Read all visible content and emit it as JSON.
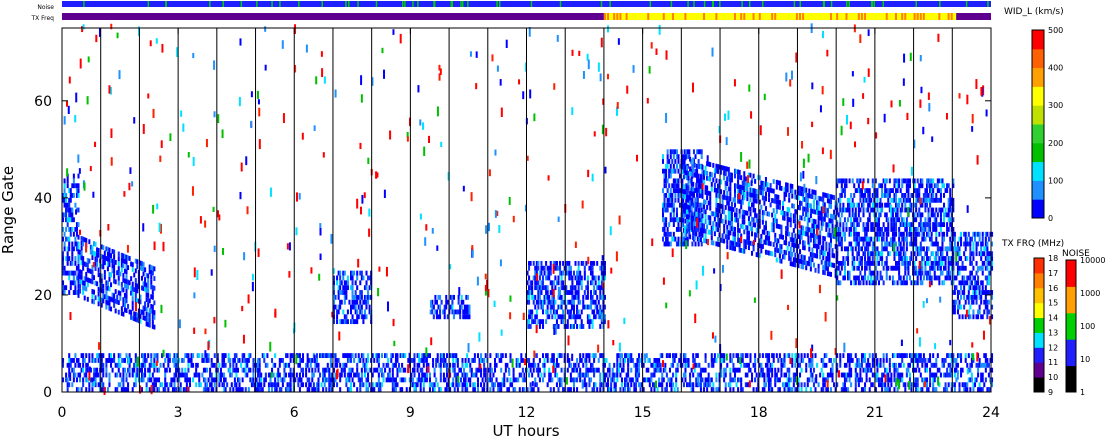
{
  "chart_data": {
    "type": "heatmap",
    "xlabel": "UT hours",
    "ylabel": "Range Gate",
    "xlim": [
      0,
      24
    ],
    "ylim": [
      0,
      75
    ],
    "x_ticks": [
      "0",
      "3",
      "6",
      "9",
      "12",
      "15",
      "18",
      "21",
      "24"
    ],
    "y_ticks": [
      "0",
      "20",
      "40",
      "60"
    ],
    "scan_markers_ut": [
      1,
      2,
      3,
      4,
      5,
      6,
      7,
      8,
      9,
      10,
      11,
      12,
      13,
      14,
      15,
      16,
      17,
      18,
      19,
      20,
      21,
      22,
      23
    ],
    "strip_labels": {
      "noise": "Noise",
      "txfreq": "TX Freq"
    },
    "tx_freq_strip": [
      {
        "from": 0,
        "to": 14,
        "freq_mhz": 10
      },
      {
        "from": 14,
        "to": 23.1,
        "freq_mhz": 14.5
      },
      {
        "from": 23.1,
        "to": 24,
        "freq_mhz": 10
      }
    ],
    "colorbars": {
      "width": {
        "title": "WID_L (km/s)",
        "ticks": [
          "0",
          "100",
          "200",
          "300",
          "400",
          "500"
        ],
        "colors": [
          "#0000ff",
          "#1e90ff",
          "#00e0ff",
          "#00c000",
          "#30d030",
          "#c0e000",
          "#ffff00",
          "#ffa000",
          "#ff6000",
          "#ff0000"
        ]
      },
      "txfreq": {
        "title": "TX FRQ (MHz)",
        "ticks": [
          "9",
          "10",
          "11",
          "12",
          "13",
          "14",
          "15",
          "16",
          "17",
          "18"
        ],
        "colors": [
          "#000000",
          "#600090",
          "#2020ff",
          "#00e0ff",
          "#00d000",
          "#ffff00",
          "#ffc000",
          "#ff8000",
          "#ff3000"
        ]
      },
      "noise": {
        "title": "NOISE",
        "ticks": [
          "1",
          "10",
          "100",
          "1000",
          "10000"
        ],
        "colors": [
          "#000000",
          "#2020ff",
          "#00d000",
          "#ffa000",
          "#ff0000"
        ]
      }
    },
    "echo_regions": [
      {
        "t0": 0.0,
        "t1": 0.4,
        "g0": 20,
        "g1": 45,
        "width_class": "low"
      },
      {
        "t0": 0.4,
        "t1": 2.4,
        "g0": 14,
        "g1": 32,
        "width_class": "low",
        "slope": "descending"
      },
      {
        "t0": 7.0,
        "t1": 8.0,
        "g0": 14,
        "g1": 25,
        "width_class": "low"
      },
      {
        "t0": 9.5,
        "t1": 10.5,
        "g0": 15,
        "g1": 20,
        "width_class": "low"
      },
      {
        "t0": 12.0,
        "t1": 14.0,
        "g0": 13,
        "g1": 27,
        "width_class": "low"
      },
      {
        "t0": 15.5,
        "t1": 16.5,
        "g0": 30,
        "g1": 50,
        "width_class": "low"
      },
      {
        "t0": 16.0,
        "t1": 20.0,
        "g0": 25,
        "g1": 48,
        "width_class": "low",
        "slope": "descending"
      },
      {
        "t0": 20.0,
        "t1": 23.0,
        "g0": 22,
        "g1": 44,
        "width_class": "low"
      },
      {
        "t0": 23.0,
        "t1": 24.0,
        "g0": 15,
        "g1": 33,
        "width_class": "low"
      },
      {
        "t0": 0.0,
        "t1": 24.0,
        "g0": 0,
        "g1": 8,
        "width_class": "low",
        "note": "near-range ground scatter"
      }
    ]
  }
}
